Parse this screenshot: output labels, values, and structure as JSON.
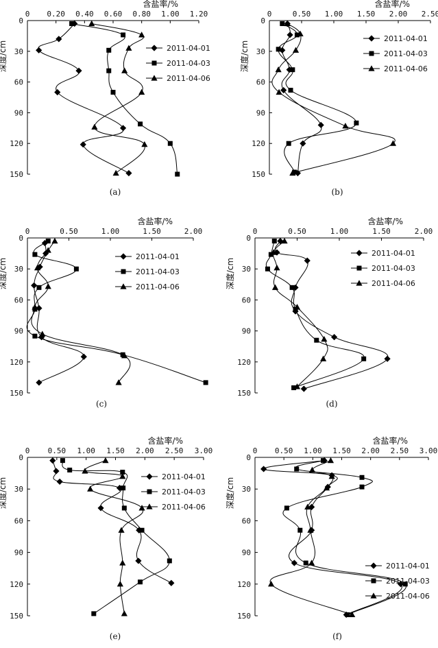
{
  "chart_data": [
    {
      "id": "a",
      "type": "line",
      "caption": "(a)",
      "title": "含盐率/%",
      "ylabel": "深度/cm",
      "xlim": [
        0,
        1.2
      ],
      "xticks": [
        "0",
        "0.20",
        "0.40",
        "0.60",
        "0.80",
        "1.00",
        "1.20"
      ],
      "ylim": [
        0,
        150
      ],
      "yticks": [
        "0",
        "30",
        "60",
        "90",
        "120",
        "150"
      ],
      "legend_position": "right-upper",
      "series": [
        {
          "name": "2011-04-01",
          "marker": "diamond",
          "x": [
            0.33,
            0.22,
            0.08,
            0.36,
            0.21,
            0.67,
            0.39,
            0.71
          ],
          "y": [
            3,
            18,
            29,
            49,
            70,
            105,
            121,
            149
          ]
        },
        {
          "name": "2011-04-03",
          "marker": "square",
          "x": [
            0.31,
            0.67,
            0.57,
            0.57,
            0.6,
            0.79,
            1.0,
            1.05
          ],
          "y": [
            3,
            14,
            29,
            49,
            70,
            101,
            120,
            150
          ]
        },
        {
          "name": "2011-04-06",
          "marker": "triangle",
          "x": [
            0.45,
            0.8,
            0.71,
            0.68,
            0.8,
            0.47,
            0.82,
            0.62
          ],
          "y": [
            3,
            14,
            27,
            49,
            70,
            104,
            121,
            149
          ]
        }
      ]
    },
    {
      "id": "b",
      "type": "line",
      "caption": "(b)",
      "title": "含盐率/%",
      "ylabel": "深度/cm",
      "xlim": [
        0,
        2.5
      ],
      "xticks": [
        "0",
        "0.50",
        "1.00",
        "1.50",
        "2.00",
        "2.50"
      ],
      "ylim": [
        0,
        150
      ],
      "yticks": [
        "0",
        "30",
        "60",
        "90",
        "120",
        "150"
      ],
      "legend_position": "right-upper",
      "series": [
        {
          "name": "2011-04-01",
          "marker": "diamond",
          "x": [
            0.28,
            0.32,
            0.2,
            0.31,
            0.22,
            0.8,
            0.52,
            0.44
          ],
          "y": [
            3,
            14,
            29,
            48,
            68,
            102,
            120,
            149
          ]
        },
        {
          "name": "2011-04-03",
          "marker": "square",
          "x": [
            0.2,
            0.43,
            0.14,
            0.36,
            0.33,
            1.35,
            0.3,
            0.39
          ],
          "y": [
            3,
            14,
            28,
            48,
            68,
            100,
            120,
            148
          ]
        },
        {
          "name": "2011-04-06",
          "marker": "triangle",
          "x": [
            0.28,
            0.48,
            0.41,
            0.14,
            0.15,
            1.18,
            1.92,
            0.36
          ],
          "y": [
            3,
            13,
            29,
            48,
            70,
            103,
            120,
            149
          ]
        }
      ]
    },
    {
      "id": "c",
      "type": "line",
      "caption": "(c)",
      "title": "含盐率/%",
      "ylabel": "深度/cm",
      "xlim": [
        0,
        2.0
      ],
      "xticks": [
        "0",
        "0.50",
        "1.00",
        "1.50",
        "2.00"
      ],
      "ylim": [
        0,
        150
      ],
      "yticks": [
        "0",
        "30",
        "60",
        "90",
        "120",
        "150"
      ],
      "legend_position": "right-upper",
      "series": [
        {
          "name": "2011-04-01",
          "marker": "diamond",
          "x": [
            0.21,
            0.22,
            0.15,
            0.08,
            0.14,
            0.17,
            0.68,
            0.14
          ],
          "y": [
            5,
            15,
            28,
            46,
            68,
            96,
            115,
            140
          ]
        },
        {
          "name": "2011-04-03",
          "marker": "square",
          "x": [
            0.25,
            0.09,
            0.59,
            0.14,
            0.09,
            0.09,
            1.15,
            2.15
          ],
          "y": [
            3,
            16,
            30,
            48,
            69,
            95,
            113,
            140
          ]
        },
        {
          "name": "2011-04-06",
          "marker": "triangle",
          "x": [
            0.33,
            0.25,
            0.12,
            0.25,
            0.09,
            0.18,
            1.17,
            1.1
          ],
          "y": [
            3,
            12,
            29,
            47,
            67,
            93,
            114,
            140
          ]
        }
      ]
    },
    {
      "id": "d",
      "type": "line",
      "caption": "(d)",
      "title": "含盐率/%",
      "ylabel": "深度/cm",
      "xlim": [
        0,
        2.0
      ],
      "xticks": [
        "0",
        "0.50",
        "1.00",
        "1.50",
        "2.00"
      ],
      "ylim": [
        0,
        150
      ],
      "yticks": [
        "0",
        "30",
        "60",
        "90",
        "120",
        "150"
      ],
      "legend_position": "right-upper",
      "series": [
        {
          "name": "2011-04-01",
          "marker": "diamond",
          "x": [
            0.3,
            0.26,
            0.62,
            0.48,
            0.48,
            0.94,
            1.57,
            0.58
          ],
          "y": [
            3,
            14,
            22,
            48,
            71,
            96,
            117,
            146
          ]
        },
        {
          "name": "2011-04-03",
          "marker": "square",
          "x": [
            0.23,
            0.19,
            0.15,
            0.44,
            0.48,
            0.73,
            1.29,
            0.46
          ],
          "y": [
            3,
            16,
            30,
            48,
            69,
            99,
            117,
            145
          ]
        },
        {
          "name": "2011-04-06",
          "marker": "triangle",
          "x": [
            0.35,
            0.22,
            0.26,
            0.24,
            0.5,
            0.82,
            0.81,
            0.5
          ],
          "y": [
            3,
            14,
            29,
            48,
            67,
            98,
            117,
            144
          ]
        }
      ]
    },
    {
      "id": "e",
      "type": "line",
      "caption": "(e)",
      "title": "含盐率/%",
      "ylabel": "深度/cm",
      "xlim": [
        0,
        3.0
      ],
      "xticks": [
        "0",
        "0.50",
        "1.00",
        "1.50",
        "2.00",
        "2.50",
        "3.00"
      ],
      "ylim": [
        0,
        150
      ],
      "yticks": [
        "0",
        "30",
        "60",
        "90",
        "120",
        "150"
      ],
      "legend_position": "right-upper",
      "series": [
        {
          "name": "2011-04-01",
          "marker": "diamond",
          "x": [
            0.43,
            0.49,
            0.55,
            1.57,
            1.25,
            1.9,
            1.89,
            2.45
          ],
          "y": [
            3,
            13,
            23,
            29,
            48,
            69,
            98,
            119
          ]
        },
        {
          "name": "2011-04-03",
          "marker": "square",
          "x": [
            0.6,
            0.72,
            1.62,
            1.63,
            1.65,
            1.95,
            2.42,
            1.92,
            1.13
          ],
          "y": [
            3,
            12,
            14,
            29,
            48,
            69,
            98,
            118,
            148
          ]
        },
        {
          "name": "2011-04-06",
          "marker": "triangle",
          "x": [
            1.33,
            0.98,
            1.62,
            1.07,
            1.95,
            1.6,
            1.62,
            1.58,
            1.65
          ],
          "y": [
            3,
            13,
            18,
            30,
            48,
            69,
            100,
            120,
            148
          ]
        }
      ]
    },
    {
      "id": "f",
      "type": "line",
      "caption": "(f)",
      "title": "含盐率/%",
      "ylabel": "深度/cm",
      "xlim": [
        0,
        3.0
      ],
      "xticks": [
        "0",
        "0.50",
        "1.00",
        "1.50",
        "2.00",
        "2.50",
        "3.00"
      ],
      "ylim": [
        0,
        150
      ],
      "yticks": [
        "0",
        "30",
        "60",
        "90",
        "120",
        "150"
      ],
      "legend_position": "right-lower",
      "series": [
        {
          "name": "2011-04-01",
          "marker": "diamond",
          "x": [
            1.2,
            0.15,
            1.33,
            1.26,
            0.98,
            0.98,
            0.68,
            2.52,
            1.58
          ],
          "y": [
            3,
            11,
            17,
            28,
            47,
            69,
            100,
            120,
            149
          ]
        },
        {
          "name": "2011-04-03",
          "marker": "square",
          "x": [
            1.18,
            0.72,
            1.85,
            1.85,
            0.55,
            0.78,
            0.88,
            2.6,
            1.6
          ],
          "y": [
            3,
            11,
            19,
            28,
            48,
            69,
            100,
            120,
            149
          ]
        },
        {
          "name": "2011-04-06",
          "marker": "triangle",
          "x": [
            1.31,
            0.99,
            1.33,
            1.24,
            0.91,
            0.96,
            0.98,
            0.28,
            1.68
          ],
          "y": [
            3,
            12,
            18,
            29,
            47,
            69,
            100,
            120,
            149
          ]
        }
      ]
    }
  ]
}
